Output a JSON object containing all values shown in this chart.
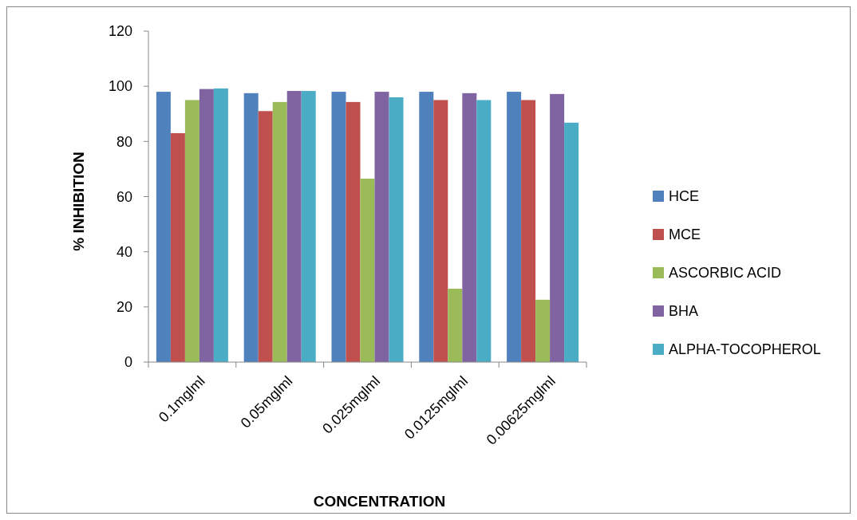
{
  "chart_data": {
    "type": "bar",
    "xlabel": "CONCENTRATION",
    "ylabel": "% INHIBITION",
    "categories": [
      "0.1mglml",
      "0.05mglml",
      "0.025mglml",
      "0.0125mglml",
      "0.00625mglml"
    ],
    "series": [
      {
        "name": "HCE",
        "color": "#4f81bd",
        "values": [
          98,
          97.5,
          98,
          98,
          98
        ]
      },
      {
        "name": "MCE",
        "color": "#c0504d",
        "values": [
          83,
          91,
          94.3,
          95,
          95
        ]
      },
      {
        "name": "ASCORBIC ACID",
        "color": "#9bbb59",
        "values": [
          95,
          94.3,
          66.5,
          26.6,
          22.6
        ]
      },
      {
        "name": "BHA",
        "color": "#8064a2",
        "values": [
          99,
          98.3,
          98,
          97.5,
          97.2
        ]
      },
      {
        "name": "ALPHA-TOCOPHEROL",
        "color": "#4bacc6",
        "values": [
          99.2,
          98.3,
          96,
          95,
          86.8
        ]
      }
    ],
    "ylim": [
      0,
      120
    ],
    "yticks": [
      0,
      20,
      40,
      60,
      80,
      100,
      120
    ],
    "grid": false,
    "legend": "right"
  }
}
